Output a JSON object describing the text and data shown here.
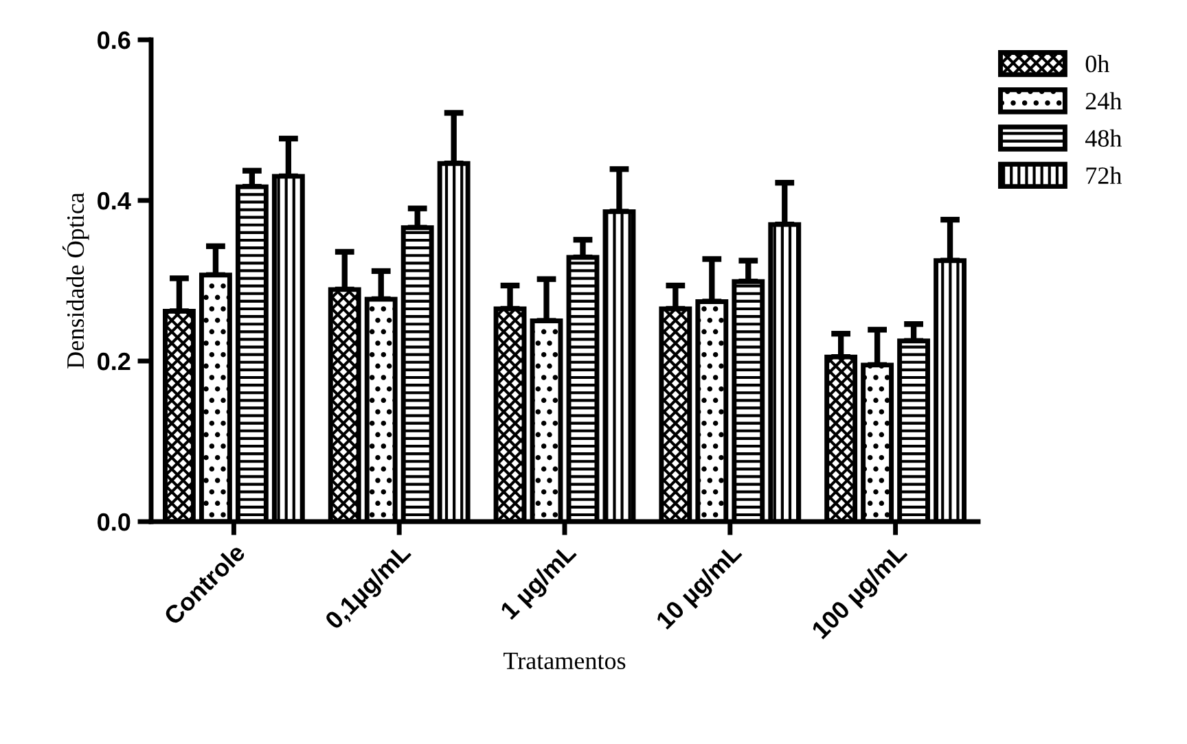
{
  "chart_data": {
    "type": "bar",
    "xlabel": "Tratamentos",
    "ylabel": "Densidade Óptica",
    "categories": [
      "Controle",
      "0,1µg/mL",
      "1 µg/mL",
      "10 µg/mL",
      "100 µg/mL"
    ],
    "series": [
      {
        "name": "0h",
        "color": "#000000",
        "values": [
          0.262,
          0.289,
          0.265,
          0.265,
          0.205
        ],
        "errors": [
          [
            0.262,
            0.303
          ],
          [
            0.289,
            0.336
          ],
          [
            0.265,
            0.294
          ],
          [
            0.265,
            0.294
          ],
          [
            0.205,
            0.234
          ]
        ]
      },
      {
        "name": "24h",
        "color": "#000000",
        "values": [
          0.307,
          0.277,
          0.25,
          0.274,
          0.195
        ],
        "errors": [
          [
            0.307,
            0.343
          ],
          [
            0.277,
            0.312
          ],
          [
            0.25,
            0.302
          ],
          [
            0.274,
            0.327
          ],
          [
            0.195,
            0.239
          ]
        ]
      },
      {
        "name": "48h",
        "color": "#000000",
        "values": [
          0.417,
          0.366,
          0.329,
          0.299,
          0.225
        ],
        "errors": [
          [
            0.417,
            0.437
          ],
          [
            0.366,
            0.39
          ],
          [
            0.329,
            0.351
          ],
          [
            0.299,
            0.325
          ],
          [
            0.225,
            0.246
          ]
        ]
      },
      {
        "name": "72h",
        "color": "#000000",
        "values": [
          0.43,
          0.446,
          0.386,
          0.37,
          0.325
        ],
        "errors": [
          [
            0.43,
            0.477
          ],
          [
            0.446,
            0.509
          ],
          [
            0.386,
            0.439
          ],
          [
            0.37,
            0.422
          ],
          [
            0.325,
            0.376
          ]
        ]
      }
    ],
    "ylim": [
      0,
      0.6
    ],
    "yticks": [
      {
        "value": 0,
        "label": "0.0"
      },
      {
        "value": 0.2,
        "label": "0.2"
      },
      {
        "value": 0.4,
        "label": "0.4"
      },
      {
        "value": 0.6,
        "label": "0.6"
      }
    ],
    "grid": false,
    "legend": "top right"
  }
}
